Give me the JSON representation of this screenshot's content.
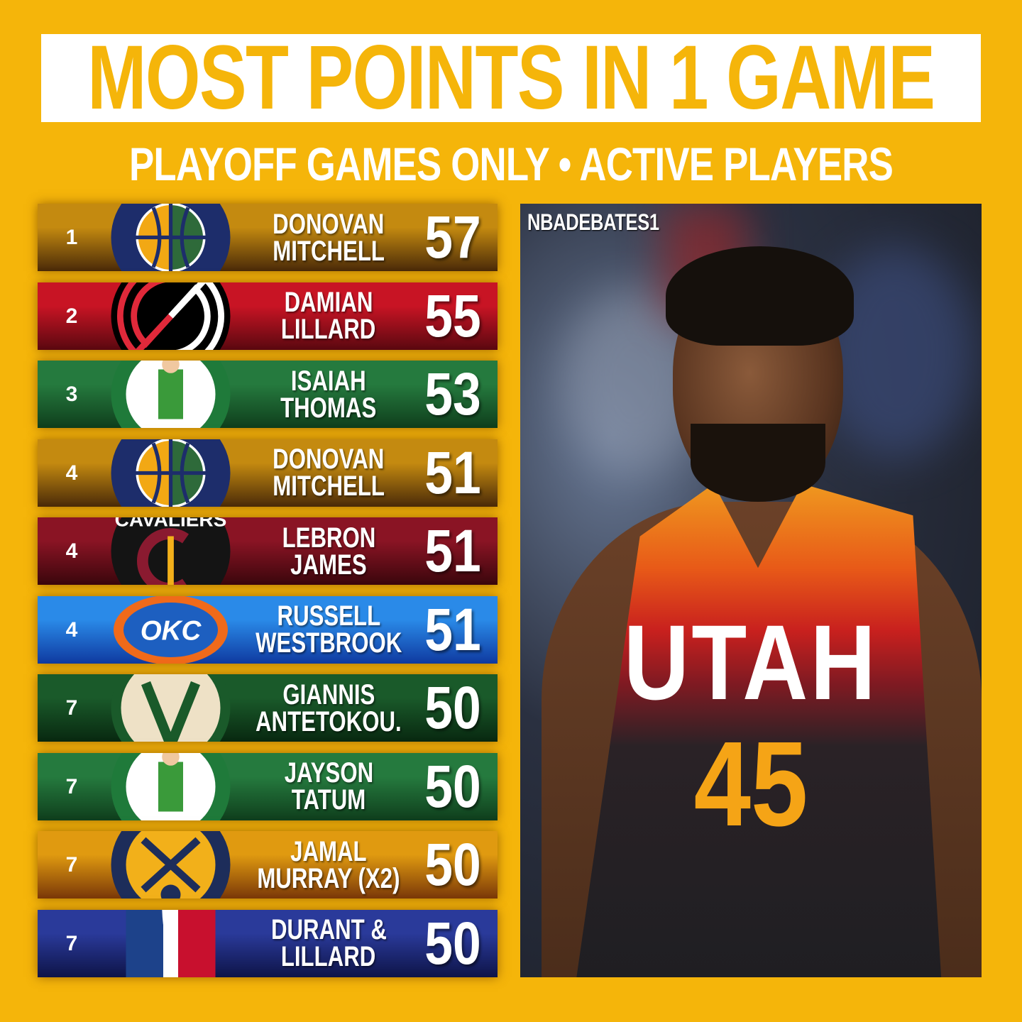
{
  "header": {
    "title": "MOST POINTS IN 1 GAME",
    "subtitle": "PLAYOFF GAMES ONLY • ACTIVE PLAYERS"
  },
  "rows": [
    {
      "rank": "1",
      "first": "DONOVAN",
      "last": "MITCHELL",
      "points": "57",
      "team": "jazz",
      "colors": [
        "#c48a10",
        "#4a2a08"
      ]
    },
    {
      "rank": "2",
      "first": "DAMIAN",
      "last": "LILLARD",
      "points": "55",
      "team": "blazers",
      "colors": [
        "#c81424",
        "#5a0810"
      ]
    },
    {
      "rank": "3",
      "first": "ISAIAH",
      "last": "THOMAS",
      "points": "53",
      "team": "celtics",
      "colors": [
        "#257a3e",
        "#0f3e1c"
      ]
    },
    {
      "rank": "4",
      "first": "DONOVAN",
      "last": "MITCHELL",
      "points": "51",
      "team": "jazz",
      "colors": [
        "#c48a10",
        "#4a2a08"
      ]
    },
    {
      "rank": "4",
      "first": "LEBRON",
      "last": "JAMES",
      "points": "51",
      "team": "cavaliers",
      "colors": [
        "#8a1424",
        "#3a060c"
      ]
    },
    {
      "rank": "4",
      "first": "RUSSELL",
      "last": "WESTBROOK",
      "points": "51",
      "team": "thunder",
      "colors": [
        "#2a8ae8",
        "#0f3aa0"
      ]
    },
    {
      "rank": "7",
      "first": "GIANNIS",
      "last": "ANTETOKOU.",
      "points": "50",
      "team": "bucks",
      "colors": [
        "#1a5a2a",
        "#082810"
      ]
    },
    {
      "rank": "7",
      "first": "JAYSON",
      "last": "TATUM",
      "points": "50",
      "team": "celtics",
      "colors": [
        "#257a3e",
        "#0f3e1c"
      ]
    },
    {
      "rank": "7",
      "first": "JAMAL",
      "last": "MURRAY (X2)",
      "points": "50",
      "team": "nuggets",
      "colors": [
        "#e09a10",
        "#7a3808"
      ]
    },
    {
      "rank": "7",
      "first": "DURANT &",
      "last": "LILLARD",
      "points": "50",
      "team": "nba",
      "colors": [
        "#2a3a9a",
        "#0e1448"
      ]
    }
  ],
  "photo": {
    "watermark": "NBADEBATES1",
    "jersey_text": "UTAH",
    "jersey_number": "45"
  }
}
